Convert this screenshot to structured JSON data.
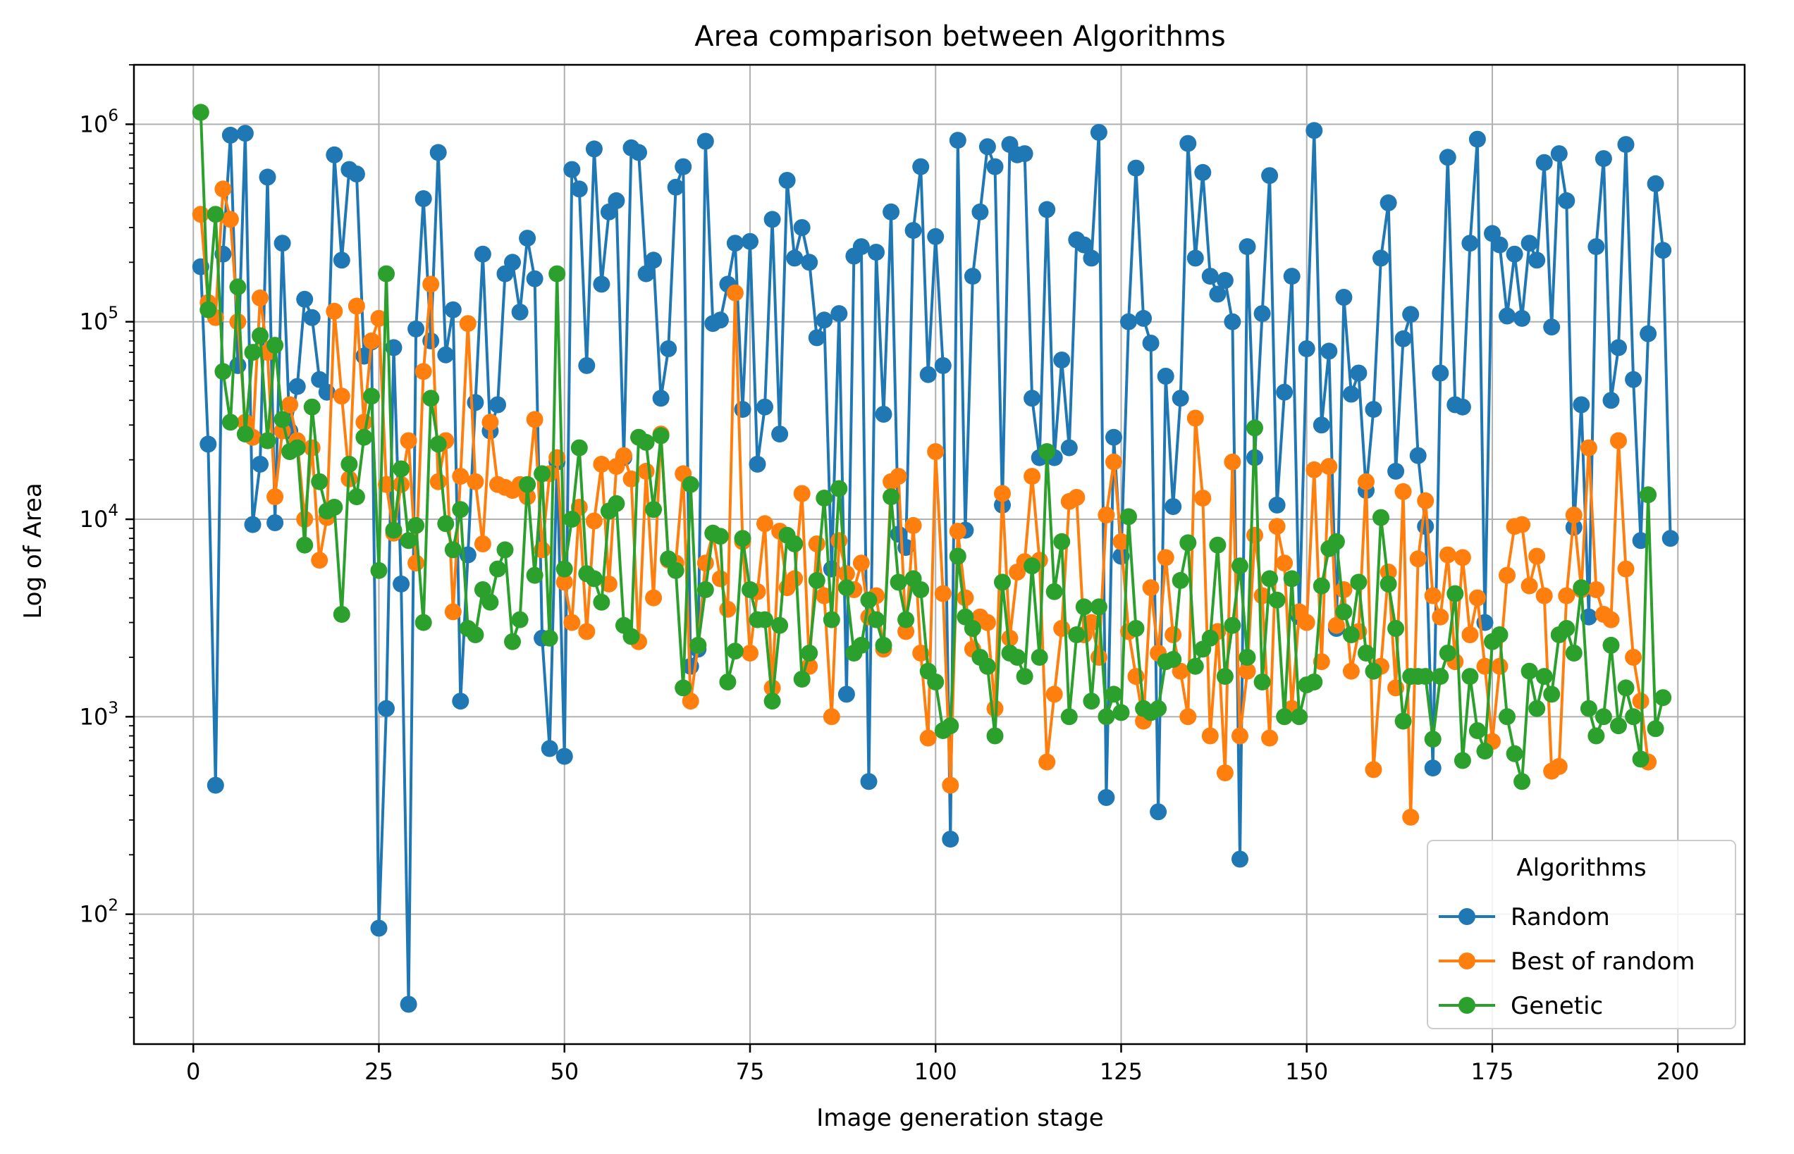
{
  "chart_data": {
    "type": "line",
    "title": "Area comparison between Algorithms",
    "xlabel": "Image generation stage",
    "ylabel": "Log of Area",
    "yscale": "log",
    "xlim": [
      -8,
      209
    ],
    "ylim": [
      22,
      2000000
    ],
    "xticks": [
      0,
      25,
      50,
      75,
      100,
      125,
      150,
      175,
      200
    ],
    "yticks": [
      {
        "value": 100,
        "base": "10",
        "exp": "2"
      },
      {
        "value": 1000,
        "base": "10",
        "exp": "3"
      },
      {
        "value": 10000,
        "base": "10",
        "exp": "4"
      },
      {
        "value": 100000,
        "base": "10",
        "exp": "5"
      },
      {
        "value": 1000000,
        "base": "10",
        "exp": "6"
      }
    ],
    "grid": true,
    "legend": {
      "title": "Algorithms",
      "position": "lower-right"
    },
    "x_start": 1,
    "series": [
      {
        "name": "Random",
        "color": "#1f77b4",
        "values": [
          190000,
          24000,
          450,
          220000,
          880000,
          60000,
          900000,
          9400,
          19000,
          540000,
          9600,
          250000,
          28000,
          47000,
          130000,
          105000,
          51000,
          44000,
          700000,
          205000,
          590000,
          560000,
          67000,
          79000,
          85,
          1100,
          74000,
          4700,
          35,
          92000,
          420000,
          80000,
          720000,
          68000,
          115000,
          1200,
          6600,
          39000,
          220000,
          28000,
          38000,
          175000,
          200000,
          112000,
          265000,
          165000,
          2500,
          690,
          19500,
          630,
          590000,
          470000,
          60000,
          750000,
          155000,
          360000,
          410000,
          20500,
          760000,
          720000,
          175000,
          205000,
          41000,
          73000,
          480000,
          610000,
          1800,
          2200,
          820000,
          98000,
          102000,
          155000,
          250000,
          36000,
          255000,
          19000,
          37000,
          330000,
          27000,
          520000,
          210000,
          300000,
          200000,
          83000,
          102000,
          5600,
          110000,
          1300,
          215000,
          240000,
          470,
          225000,
          34000,
          360000,
          8400,
          7200,
          290000,
          610000,
          54000,
          270000,
          60000,
          240,
          830000,
          8800,
          170000,
          360000,
          770000,
          610000,
          11800,
          790000,
          700000,
          710000,
          41000,
          20500,
          370000,
          20500,
          64000,
          23000,
          260000,
          245000,
          210000,
          910000,
          390,
          26000,
          6500,
          100000,
          600000,
          104000,
          78000,
          330,
          53000,
          11600,
          41000,
          800000,
          210000,
          570000,
          170000,
          138000,
          162000,
          100000,
          190,
          240000,
          20500,
          110000,
          550000,
          11800,
          44000,
          170000,
          3200,
          73000,
          930000,
          30000,
          71000,
          2800,
          133000,
          43000,
          55000,
          14000,
          36000,
          210000,
          400000,
          17500,
          82000,
          109000,
          21000,
          9200,
          550,
          55000,
          680000,
          38000,
          37000,
          250000,
          840000,
          3000,
          280000,
          245000,
          107000,
          220000,
          104000,
          250000,
          205000,
          640000,
          94000,
          710000,
          410000,
          9100,
          38000,
          3200,
          240000,
          670000,
          40000,
          74000,
          790000,
          51000,
          7800,
          87000,
          500000,
          230000,
          8000
        ]
      },
      {
        "name": "Best of random",
        "color": "#ff7f0e",
        "values": [
          350000,
          125000,
          105000,
          470000,
          330000,
          100000,
          31000,
          26000,
          132000,
          70000,
          13000,
          28000,
          38000,
          25000,
          10000,
          23000,
          6200,
          10200,
          113000,
          42000,
          16000,
          120000,
          31000,
          80000,
          104000,
          15000,
          8500,
          15000,
          25000,
          6000,
          56000,
          155000,
          15500,
          25000,
          3400,
          16500,
          98000,
          15500,
          7500,
          31000,
          15000,
          14500,
          14000,
          15000,
          13000,
          32000,
          7000,
          17000,
          20500,
          4800,
          3000,
          11500,
          2700,
          9800,
          19000,
          4700,
          18500,
          21000,
          16000,
          2400,
          17500,
          4000,
          27000,
          6200,
          6000,
          17000,
          1200,
          2300,
          6000,
          8500,
          5000,
          3500,
          140000,
          7700,
          2100,
          4300,
          9500,
          1400,
          8700,
          4500,
          5000,
          13500,
          1800,
          7500,
          4100,
          1000,
          7800,
          5300,
          4400,
          6000,
          3200,
          4100,
          2200,
          15500,
          16500,
          2700,
          9300,
          2100,
          780,
          22000,
          4200,
          450,
          8700,
          4000,
          2200,
          3200,
          3000,
          1100,
          13500,
          2500,
          5400,
          6100,
          16500,
          6200,
          590,
          1300,
          2800,
          12300,
          12900,
          2600,
          3000,
          2000,
          10500,
          19500,
          7700,
          2700,
          1600,
          950,
          4500,
          2100,
          6400,
          2600,
          1700,
          1000,
          32500,
          12800,
          800,
          2700,
          520,
          19500,
          800,
          1700,
          8300,
          4100,
          780,
          9200,
          6000,
          1100,
          3400,
          3000,
          17800,
          1900,
          18500,
          2900,
          4400,
          1700,
          2700,
          15500,
          540,
          1800,
          5400,
          1400,
          13800,
          310,
          6300,
          12400,
          4100,
          3200,
          6600,
          1900,
          6400,
          2600,
          4000,
          1800,
          750,
          1800,
          5200,
          9200,
          9400,
          4600,
          6500,
          4100,
          530,
          560,
          4100,
          10500,
          4400,
          23000,
          4400,
          3300,
          3100,
          25000,
          5600,
          2000,
          1200,
          590
        ]
      },
      {
        "name": "Genetic",
        "color": "#2ca02c",
        "values": [
          1150000,
          115000,
          350000,
          56000,
          31000,
          150000,
          27000,
          70000,
          85000,
          25000,
          76000,
          32000,
          22000,
          23000,
          7400,
          37000,
          15500,
          11000,
          11500,
          3300,
          19000,
          13000,
          26000,
          42000,
          5500,
          175000,
          8800,
          18000,
          7800,
          9300,
          3000,
          41000,
          24000,
          9500,
          7000,
          11200,
          2800,
          2600,
          4400,
          3800,
          5600,
          7000,
          2400,
          3100,
          15000,
          5200,
          17000,
          2500,
          175000,
          5600,
          10000,
          23000,
          5300,
          5000,
          3800,
          11000,
          12000,
          2900,
          2550,
          26000,
          24500,
          11200,
          26500,
          6300,
          5500,
          1400,
          15000,
          2300,
          4400,
          8500,
          8200,
          1500,
          2150,
          8000,
          4400,
          3100,
          3100,
          1200,
          2900,
          8300,
          7500,
          1550,
          2100,
          4900,
          12800,
          3100,
          14300,
          4500,
          2100,
          2300,
          3900,
          3100,
          2300,
          13000,
          4800,
          3100,
          5000,
          4400,
          1700,
          1500,
          850,
          900,
          6500,
          3200,
          2800,
          2000,
          1800,
          800,
          4800,
          2100,
          2000,
          1600,
          5800,
          2000,
          22000,
          4300,
          7700,
          1000,
          2600,
          3600,
          1200,
          3600,
          1000,
          1300,
          1050,
          10300,
          2800,
          1100,
          1050,
          1100,
          1900,
          1950,
          4900,
          7600,
          1800,
          2200,
          2500,
          7400,
          1600,
          2900,
          5800,
          2000,
          29000,
          1500,
          5000,
          3900,
          1000,
          5000,
          1000,
          1450,
          1500,
          4600,
          7100,
          7700,
          3400,
          2600,
          4800,
          2100,
          1700,
          10200,
          4700,
          2800,
          950,
          1600,
          1600,
          1600,
          770,
          1600,
          2100,
          4200,
          600,
          1600,
          850,
          670,
          2400,
          2600,
          1000,
          650,
          470,
          1700,
          1100,
          1600,
          1300,
          2600,
          2800,
          2100,
          4500,
          1100,
          800,
          1000,
          2300,
          900,
          1400,
          1000,
          610,
          13300,
          870,
          1250
        ]
      }
    ]
  }
}
